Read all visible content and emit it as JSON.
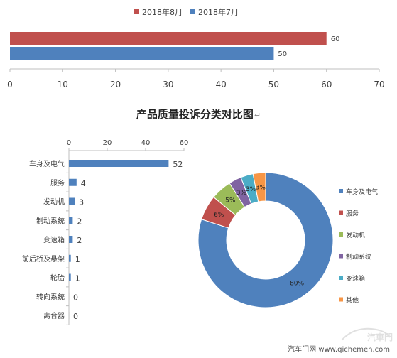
{
  "title": "产品质量投诉分类对比图",
  "title_mark": "↵",
  "watermark": "汽车门网 www.qichemen.com",
  "watermark_logo": "汽車門",
  "chart_data": [
    {
      "type": "bar",
      "orientation": "horizontal",
      "series": [
        {
          "name": "2018年8月",
          "values": [
            60
          ],
          "color": "#c0504d"
        },
        {
          "name": "2018年7月",
          "values": [
            50
          ],
          "color": "#4f81bd"
        }
      ],
      "xlim": [
        0,
        70
      ],
      "xticks": [
        0,
        10,
        20,
        30,
        40,
        50,
        60,
        70
      ],
      "legend": "top"
    },
    {
      "type": "bar",
      "orientation": "horizontal",
      "categories": [
        "车身及电气",
        "服务",
        "发动机",
        "制动系统",
        "变速箱",
        "前后桥及悬架",
        "轮胎",
        "转向系统",
        "离合器"
      ],
      "values": [
        52,
        4,
        3,
        2,
        2,
        1,
        1,
        0,
        0
      ],
      "color": "#4f81bd",
      "xlim": [
        0,
        60
      ],
      "xticks": [
        0,
        20,
        40,
        60
      ],
      "xaxis_position": "top"
    },
    {
      "type": "pie",
      "donut": true,
      "categories": [
        "车身及电气",
        "服务",
        "发动机",
        "制动系统",
        "变速箱",
        "其他"
      ],
      "values": [
        80,
        6,
        5,
        3,
        3,
        3
      ],
      "labels": [
        "80%",
        "6%",
        "5%",
        "3%",
        "3%",
        "3%"
      ],
      "colors": [
        "#4f81bd",
        "#c0504d",
        "#9bbb59",
        "#8064a2",
        "#4bacc6",
        "#f79646"
      ],
      "legend": "right"
    }
  ]
}
